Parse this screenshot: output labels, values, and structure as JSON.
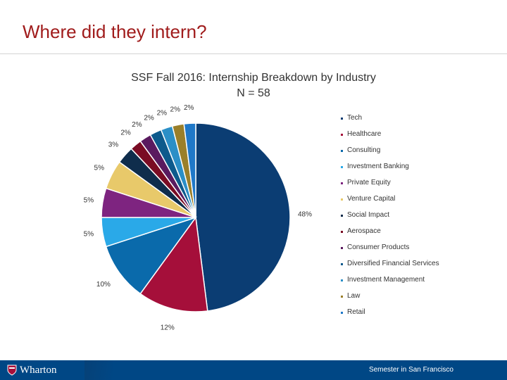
{
  "slide": {
    "title": "Where did they intern?"
  },
  "footer": {
    "logo_text": "Wharton",
    "right_text": "Semester in San Francisco"
  },
  "chart_data": {
    "type": "pie",
    "title": "SSF Fall 2016: Internship Breakdown by Industry",
    "subtitle": "N = 58",
    "legend_position": "right",
    "slices": [
      {
        "name": "Tech",
        "value": 48,
        "label": "48%",
        "color": "#0b3d73"
      },
      {
        "name": "Healthcare",
        "value": 12,
        "label": "12%",
        "color": "#a50f3a"
      },
      {
        "name": "Consulting",
        "value": 10,
        "label": "10%",
        "color": "#0a6aab"
      },
      {
        "name": "Investment Banking",
        "value": 5,
        "label": "5%",
        "color": "#2aa9e8"
      },
      {
        "name": "Private Equity",
        "value": 5,
        "label": "5%",
        "color": "#7e2480"
      },
      {
        "name": "Venture Capital",
        "value": 5,
        "label": "5%",
        "color": "#e8c96a"
      },
      {
        "name": "Social Impact",
        "value": 3,
        "label": "3%",
        "color": "#0f2d4c"
      },
      {
        "name": "Aerospace",
        "value": 2,
        "label": "2%",
        "color": "#7a0c24"
      },
      {
        "name": "Consumer Products",
        "value": 2,
        "label": "2%",
        "color": "#5a1a5f"
      },
      {
        "name": "Diversified Financial Services",
        "value": 2,
        "label": "2%",
        "color": "#0d5a8c"
      },
      {
        "name": "Investment Management",
        "value": 2,
        "label": "2%",
        "color": "#2b8fc7"
      },
      {
        "name": "Law",
        "value": 2,
        "label": "2%",
        "color": "#9a7f2a"
      },
      {
        "name": "Retail",
        "value": 2,
        "label": "2%",
        "color": "#1f78c8"
      }
    ]
  }
}
